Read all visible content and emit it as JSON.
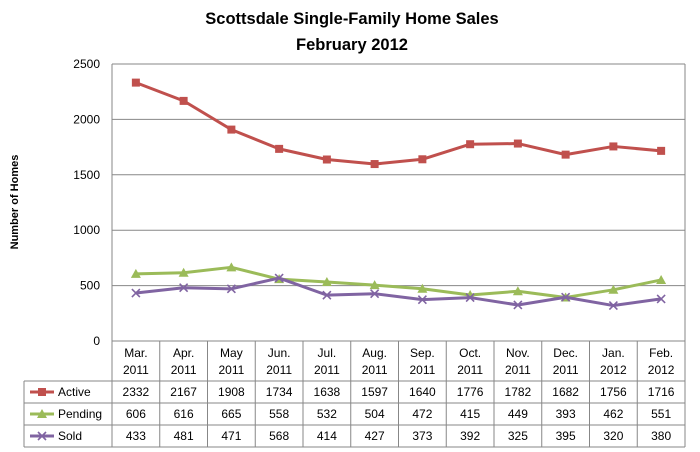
{
  "chart_data": {
    "type": "line",
    "title": "Scottsdale Single-Family  Home Sales",
    "subtitle": "February 2012",
    "ylabel": "Number of Homes",
    "xlabel": "",
    "ylim": [
      0,
      2500
    ],
    "yticks": [
      0,
      500,
      1000,
      1500,
      2000,
      2500
    ],
    "grid": true,
    "legend": "data-table",
    "categories": [
      [
        "Mar.",
        "2011"
      ],
      [
        "Apr.",
        "2011"
      ],
      [
        "May",
        "2011"
      ],
      [
        "Jun.",
        "2011"
      ],
      [
        "Jul.",
        "2011"
      ],
      [
        "Aug.",
        "2011"
      ],
      [
        "Sep.",
        "2011"
      ],
      [
        "Oct.",
        "2011"
      ],
      [
        "Nov.",
        "2011"
      ],
      [
        "Dec.",
        "2011"
      ],
      [
        "Jan.",
        "2012"
      ],
      [
        "Feb.",
        "2012"
      ]
    ],
    "series": [
      {
        "name": "Active",
        "color": "#C0504D",
        "marker": "square",
        "values": [
          2332,
          2167,
          1908,
          1734,
          1638,
          1597,
          1640,
          1776,
          1782,
          1682,
          1756,
          1716
        ]
      },
      {
        "name": "Pending",
        "color": "#9BBB59",
        "marker": "triangle",
        "values": [
          606,
          616,
          665,
          558,
          532,
          504,
          472,
          415,
          449,
          393,
          462,
          551
        ]
      },
      {
        "name": "Sold",
        "color": "#8064A2",
        "marker": "x",
        "values": [
          433,
          481,
          471,
          568,
          414,
          427,
          373,
          392,
          325,
          395,
          320,
          380
        ]
      }
    ]
  }
}
